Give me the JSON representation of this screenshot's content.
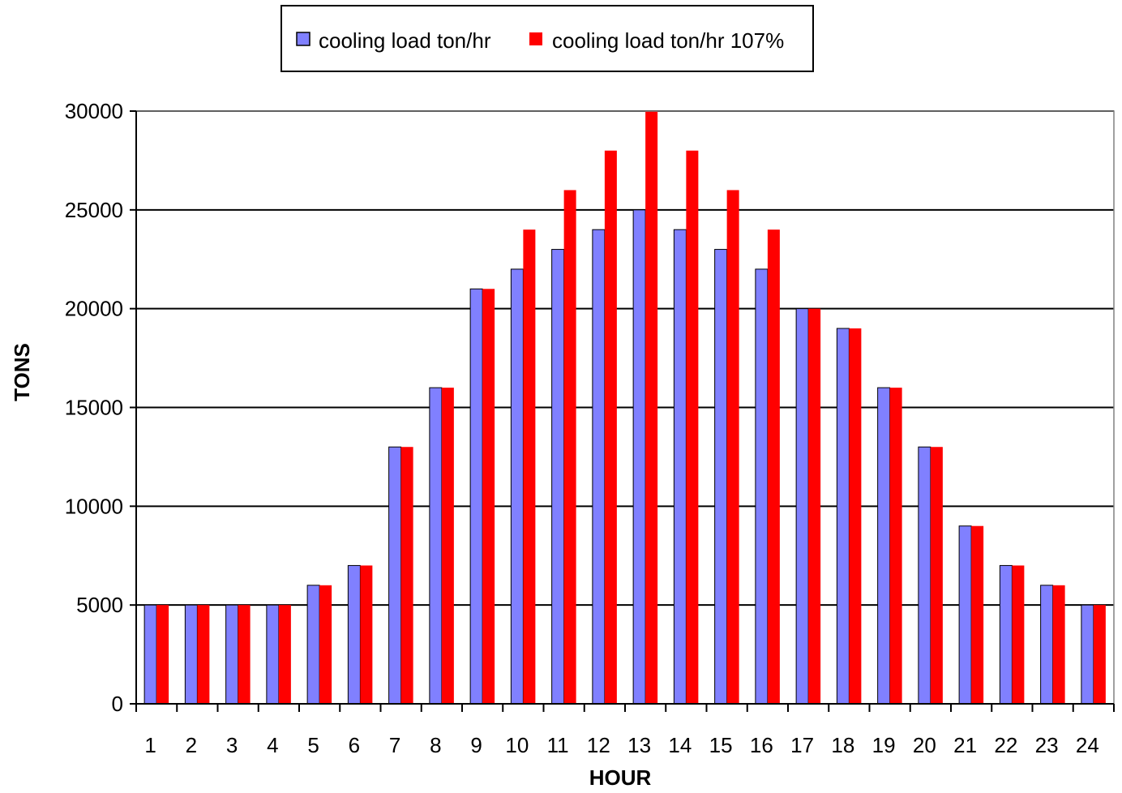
{
  "chart_data": {
    "type": "bar",
    "title": "",
    "xlabel": "HOUR",
    "ylabel": "TONS",
    "categories": [
      "1",
      "2",
      "3",
      "4",
      "5",
      "6",
      "7",
      "8",
      "9",
      "10",
      "11",
      "12",
      "13",
      "14",
      "15",
      "16",
      "17",
      "18",
      "19",
      "20",
      "21",
      "22",
      "23",
      "24"
    ],
    "series": [
      {
        "name": "cooling load ton/hr",
        "color": "#8080ff",
        "values": [
          5000,
          5000,
          5000,
          5000,
          6000,
          7000,
          13000,
          16000,
          21000,
          22000,
          23000,
          24000,
          25000,
          24000,
          23000,
          22000,
          20000,
          19000,
          16000,
          13000,
          9000,
          7000,
          6000,
          5000
        ]
      },
      {
        "name": "cooling load ton/hr 107%",
        "color": "#ff0000",
        "values": [
          5000,
          5000,
          5000,
          5000,
          6000,
          7000,
          13000,
          16000,
          21000,
          24000,
          26000,
          28000,
          30000,
          28000,
          26000,
          24000,
          20000,
          19000,
          16000,
          13000,
          9000,
          7000,
          6000,
          5000
        ]
      }
    ],
    "ylim": [
      0,
      30000
    ],
    "yticks": [
      0,
      5000,
      10000,
      15000,
      20000,
      25000,
      30000
    ],
    "ytick_labels": [
      "0",
      "5000",
      "10000",
      "15000",
      "20000",
      "25000",
      "30000"
    ],
    "grid": "horizontal",
    "legend_position": "top-center"
  }
}
